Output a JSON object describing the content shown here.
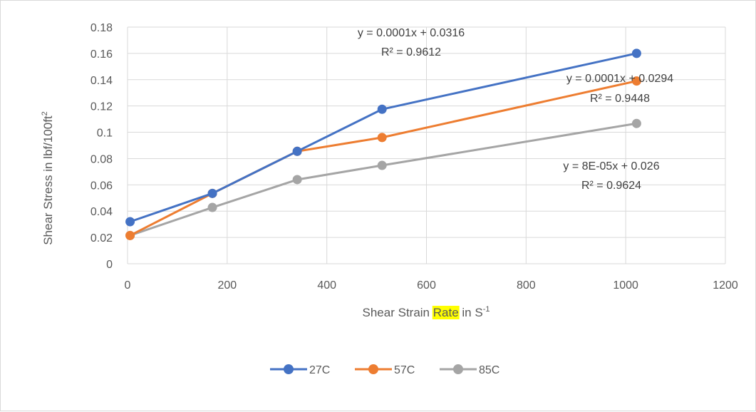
{
  "chart_data": {
    "type": "line",
    "title": "",
    "xlabel": {
      "pre": "Shear Strain ",
      "highlight": "Rate",
      "post": " in S",
      "sup": "-1"
    },
    "ylabel": {
      "main": "Shear Stress in lbf/100ft",
      "sup": "2"
    },
    "xlim": [
      0,
      1200
    ],
    "ylim": [
      0,
      0.18
    ],
    "x_ticks": [
      "0",
      "200",
      "400",
      "600",
      "800",
      "1000",
      "1200"
    ],
    "y_ticks": [
      "0",
      "0.02",
      "0.04",
      "0.06",
      "0.08",
      "0.1",
      "0.12",
      "0.14",
      "0.16",
      "0.18"
    ],
    "grid": true,
    "legend_position": "bottom",
    "series": [
      {
        "name": "27C",
        "color": "#4472C4",
        "x": [
          5.11,
          170.3,
          340.6,
          510.9,
          1021.8
        ],
        "y": [
          0.032,
          0.0535,
          0.0855,
          0.1175,
          0.16
        ]
      },
      {
        "name": "57C",
        "color": "#ED7D31",
        "x": [
          5.11,
          170.3,
          340.6,
          510.9,
          1021.8
        ],
        "y": [
          0.0215,
          0.0535,
          0.0855,
          0.096,
          0.139
        ]
      },
      {
        "name": "85C",
        "color": "#A5A5A5",
        "x": [
          5.11,
          170.3,
          340.6,
          510.9,
          1021.8
        ],
        "y": [
          0.0215,
          0.0428,
          0.064,
          0.0748,
          0.1067
        ]
      }
    ],
    "annotations": [
      {
        "series": "27C",
        "equation": "y = 0.0001x + 0.0316",
        "r2": "R² = 0.9612"
      },
      {
        "series": "57C",
        "equation": "y = 0.0001x + 0.0294",
        "r2": "R² = 0.9448"
      },
      {
        "series": "85C",
        "equation": "y = 8E-05x + 0.026",
        "r2": "R² = 0.9624"
      }
    ]
  },
  "colors": {
    "grid": "#d9d9d9",
    "text": "#595959",
    "highlight": "#FFFF00"
  }
}
